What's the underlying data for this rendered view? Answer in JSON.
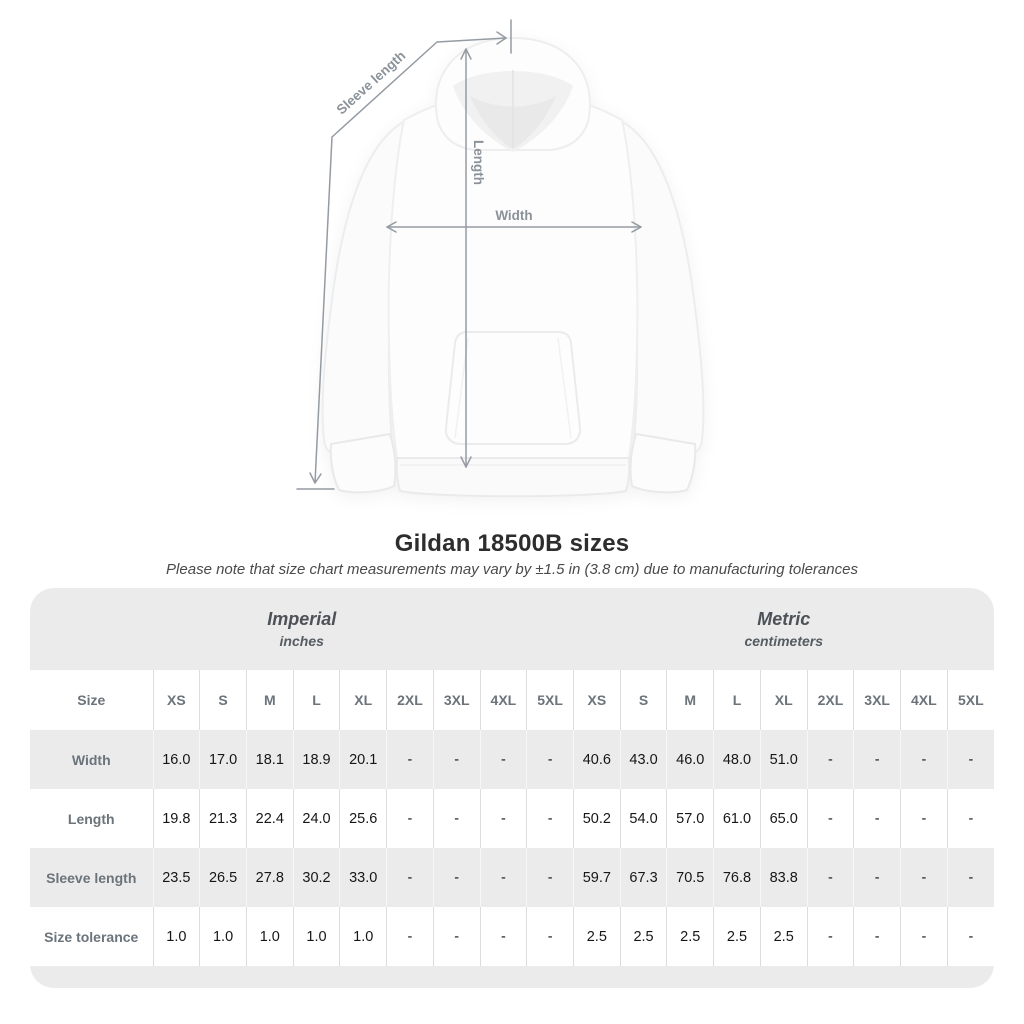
{
  "figure": {
    "sleeve_length_label": "Sleeve length",
    "length_label": "Length",
    "width_label": "Width"
  },
  "title": "Gildan 18500B sizes",
  "subtitle": "Please note that size chart measurements may vary by ±1.5 in (3.8 cm) due to manufacturing tolerances",
  "table": {
    "size_label": "Size",
    "unit_groups": [
      {
        "name": "Imperial",
        "unit": "inches"
      },
      {
        "name": "Metric",
        "unit": "centimeters"
      }
    ],
    "sizes": [
      "XS",
      "S",
      "M",
      "L",
      "XL",
      "2XL",
      "3XL",
      "4XL",
      "5XL"
    ],
    "rows": [
      {
        "label": "Width",
        "imperial": [
          "16.0",
          "17.0",
          "18.1",
          "18.9",
          "20.1",
          "-",
          "-",
          "-",
          "-"
        ],
        "metric": [
          "40.6",
          "43.0",
          "46.0",
          "48.0",
          "51.0",
          "-",
          "-",
          "-",
          "-"
        ]
      },
      {
        "label": "Length",
        "imperial": [
          "19.8",
          "21.3",
          "22.4",
          "24.0",
          "25.6",
          "-",
          "-",
          "-",
          "-"
        ],
        "metric": [
          "50.2",
          "54.0",
          "57.0",
          "61.0",
          "65.0",
          "-",
          "-",
          "-",
          "-"
        ]
      },
      {
        "label": "Sleeve length",
        "imperial": [
          "23.5",
          "26.5",
          "27.8",
          "30.2",
          "33.0",
          "-",
          "-",
          "-",
          "-"
        ],
        "metric": [
          "59.7",
          "67.3",
          "70.5",
          "76.8",
          "83.8",
          "-",
          "-",
          "-",
          "-"
        ]
      },
      {
        "label": "Size tolerance",
        "imperial": [
          "1.0",
          "1.0",
          "1.0",
          "1.0",
          "1.0",
          "-",
          "-",
          "-",
          "-"
        ],
        "metric": [
          "2.5",
          "2.5",
          "2.5",
          "2.5",
          "2.5",
          "-",
          "-",
          "-",
          "-"
        ]
      }
    ]
  },
  "colors": {
    "card_background": "#ebebeb",
    "row_alt": "#ebebeb",
    "arrow_gray": "#949ba3",
    "label_gray": "#8a929a",
    "header_text": "#6b737b",
    "value_text": "#161616"
  }
}
